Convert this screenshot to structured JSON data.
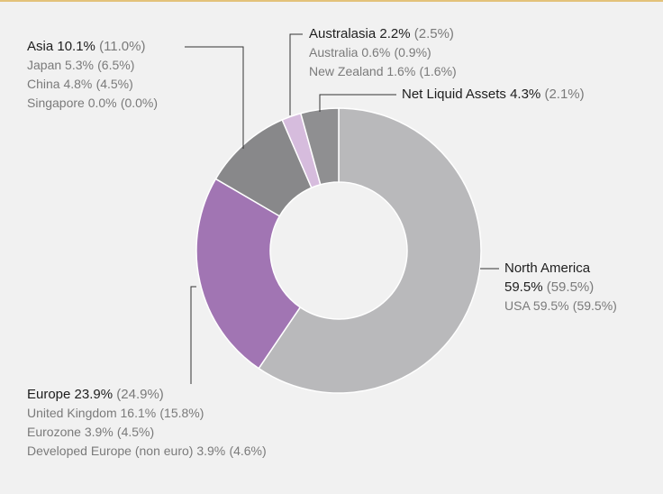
{
  "chart_data": {
    "type": "donut",
    "categories": [
      "North America",
      "Europe",
      "Asia",
      "Australasia",
      "Net Liquid Assets"
    ],
    "values": [
      59.5,
      23.9,
      10.1,
      2.2,
      4.3
    ],
    "value_labels": [
      "59.5%",
      "23.9%",
      "10.1%",
      "2.2%",
      "4.3%"
    ],
    "prior_labels": [
      "(59.5%)",
      "(24.9%)",
      "(11.0%)",
      "(2.5%)",
      "(2.1%)"
    ],
    "colors": [
      "#b9b9bb",
      "#a175b3",
      "#88888a",
      "#d6bcdd",
      "#8f8f91"
    ],
    "breakdown": [
      [
        {
          "name": "USA 59.5%",
          "prior": "(59.5%)"
        }
      ],
      [
        {
          "name": "United Kingdom 16.1%",
          "prior": "(15.8%)"
        },
        {
          "name": "Eurozone 3.9%",
          "prior": "(4.5%)"
        },
        {
          "name": "Developed Europe (non euro) 3.9%",
          "prior": "(4.6%)"
        }
      ],
      [
        {
          "name": "Japan 5.3%",
          "prior": "(6.5%)"
        },
        {
          "name": "China 4.8%",
          "prior": "(4.5%)"
        },
        {
          "name": "Singapore 0.0%",
          "prior": "(0.0%)"
        }
      ],
      [
        {
          "name": "Australia 0.6%",
          "prior": "(0.9%)"
        },
        {
          "name": "New Zealand 1.6%",
          "prior": "(1.6%)"
        }
      ],
      []
    ]
  }
}
